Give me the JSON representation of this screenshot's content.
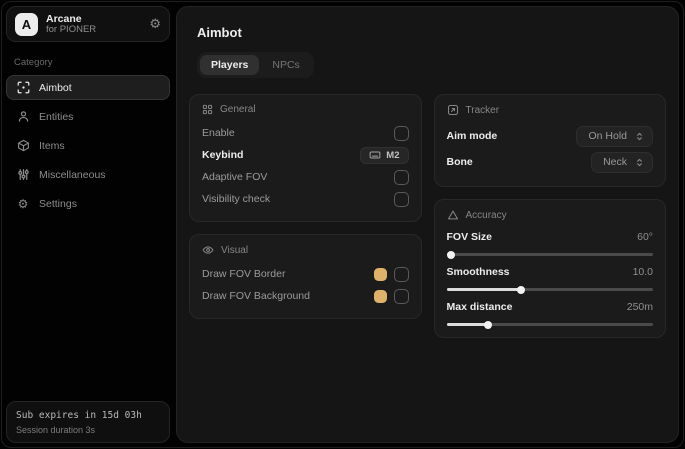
{
  "sidebar": {
    "logo_letter": "A",
    "app_name": "Arcane",
    "app_subtitle": "for PIONER",
    "category_label": "Category",
    "items": [
      {
        "label": "Aimbot",
        "icon": "crosshair-scan-icon",
        "selected": true
      },
      {
        "label": "Entities",
        "icon": "person-icon",
        "selected": false
      },
      {
        "label": "Items",
        "icon": "cube-icon",
        "selected": false
      },
      {
        "label": "Miscellaneous",
        "icon": "sliders-icon",
        "selected": false
      },
      {
        "label": "Settings",
        "icon": "gear-icon",
        "selected": false
      }
    ],
    "footer": {
      "sub_line": "Sub expires in 15d 03h",
      "session_line": "Session duration 3s"
    },
    "header_action_icon": "gear-icon",
    "gear_glyph": "⚙"
  },
  "main": {
    "title": "Aimbot",
    "tabs": [
      {
        "label": "Players",
        "selected": true
      },
      {
        "label": "NPCs",
        "selected": false
      }
    ],
    "cards": {
      "general": {
        "title": "General",
        "icon": "grid-icon",
        "rows": [
          {
            "label": "Enable",
            "control": "checkbox",
            "checked": false
          },
          {
            "label": "Keybind",
            "control": "keybind",
            "value": "M2"
          },
          {
            "label": "Adaptive FOV",
            "control": "checkbox",
            "checked": false
          },
          {
            "label": "Visibility check",
            "control": "checkbox",
            "checked": false
          }
        ]
      },
      "visual": {
        "title": "Visual",
        "icon": "eye-icon",
        "rows": [
          {
            "label": "Draw FOV Border",
            "control": "color+checkbox",
            "color": "#dfb269",
            "checked": false
          },
          {
            "label": "Draw FOV Background",
            "control": "color+checkbox",
            "color": "#dfb269",
            "checked": false
          }
        ]
      },
      "tracker": {
        "title": "Tracker",
        "icon": "focus-square-icon",
        "rows": [
          {
            "label": "Aim mode",
            "value": "On Hold"
          },
          {
            "label": "Bone",
            "value": "Neck"
          }
        ]
      },
      "accuracy": {
        "title": "Accuracy",
        "icon": "triangle-icon",
        "sliders": [
          {
            "label": "FOV Size",
            "value": "60°",
            "percent": 2
          },
          {
            "label": "Smoothness",
            "value": "10.0",
            "percent": 36
          },
          {
            "label": "Max distance",
            "value": "250m",
            "percent": 20
          }
        ]
      }
    }
  },
  "colors": {
    "accent": "#dfb269",
    "panel_bg": "#151515",
    "card_bg": "#1b1b1b",
    "text_primary": "#ededed",
    "text_secondary": "#9b9b9b"
  }
}
